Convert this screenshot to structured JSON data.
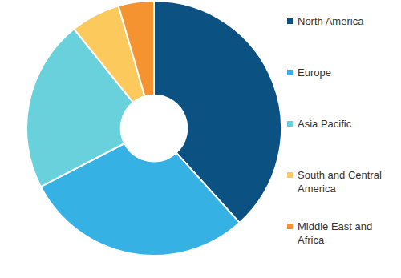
{
  "chart_data": {
    "type": "doughnut",
    "categories": [
      "North America",
      "Europe",
      "Asia Pacific",
      "South and Central America",
      "Middle East and Africa"
    ],
    "values": [
      38.3,
      29.1,
      21.8,
      6.3,
      4.5
    ],
    "colors": [
      "#0b5283",
      "#35b1e4",
      "#68d1db",
      "#fbc95c",
      "#f59330"
    ],
    "legend": "right"
  }
}
